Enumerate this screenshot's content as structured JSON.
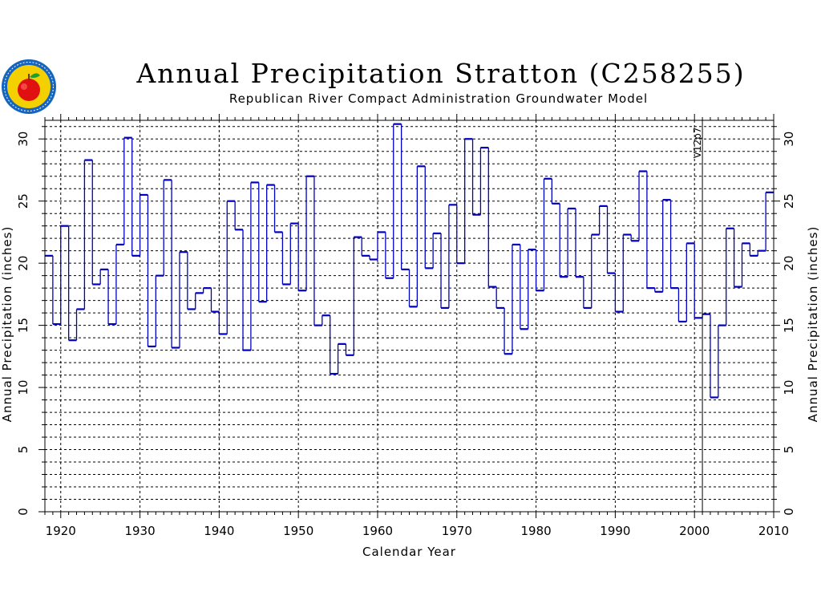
{
  "header": {
    "title": "Annual Precipitation Stratton (C258255)",
    "subtitle": "Republican River Compact Administration Groundwater Model",
    "logo_icon": "compact-seal-apple-logo"
  },
  "colors": {
    "series": "#0000c0",
    "logo_ring": "#1565c0",
    "logo_fill": "#f5d000",
    "apple": "#e01010",
    "leaf": "#1e9e2a"
  },
  "chart_data": {
    "type": "line",
    "style": "step",
    "title": "Annual Precipitation Stratton (C258255)",
    "subtitle": "Republican River Compact Administration Groundwater Model",
    "xlabel": "Calendar Year",
    "ylabel": "Annual Precipitation (inches)",
    "xlim": [
      1918,
      2010
    ],
    "ylim": [
      0,
      31.5
    ],
    "x_ticks": [
      1920,
      1930,
      1940,
      1950,
      1960,
      1970,
      1980,
      1990,
      2000,
      2010
    ],
    "y_ticks": [
      0,
      5,
      10,
      15,
      20,
      25,
      30
    ],
    "grid": true,
    "vline": {
      "x": 2001,
      "label": "V12p7"
    },
    "x": [
      1918,
      1919,
      1920,
      1921,
      1922,
      1923,
      1924,
      1925,
      1926,
      1927,
      1928,
      1929,
      1930,
      1931,
      1932,
      1933,
      1934,
      1935,
      1936,
      1937,
      1938,
      1939,
      1940,
      1941,
      1942,
      1943,
      1944,
      1945,
      1946,
      1947,
      1948,
      1949,
      1950,
      1951,
      1952,
      1953,
      1954,
      1955,
      1956,
      1957,
      1958,
      1959,
      1960,
      1961,
      1962,
      1963,
      1964,
      1965,
      1966,
      1967,
      1968,
      1969,
      1970,
      1971,
      1972,
      1973,
      1974,
      1975,
      1976,
      1977,
      1978,
      1979,
      1980,
      1981,
      1982,
      1983,
      1984,
      1985,
      1986,
      1987,
      1988,
      1989,
      1990,
      1991,
      1992,
      1993,
      1994,
      1995,
      1996,
      1997,
      1998,
      1999,
      2000,
      2001,
      2002,
      2003,
      2004,
      2005,
      2006,
      2007,
      2008,
      2009
    ],
    "values": [
      20.6,
      15.1,
      23.0,
      13.8,
      16.3,
      28.3,
      18.3,
      19.5,
      15.1,
      21.5,
      30.1,
      20.6,
      25.5,
      13.3,
      19.0,
      26.7,
      13.2,
      20.9,
      16.3,
      17.6,
      18.0,
      16.1,
      14.3,
      25.0,
      22.7,
      13.0,
      26.5,
      16.9,
      26.3,
      22.5,
      18.3,
      23.2,
      17.8,
      27.0,
      15.0,
      15.8,
      11.1,
      13.5,
      12.6,
      22.1,
      20.6,
      20.3,
      22.5,
      18.8,
      31.2,
      19.5,
      16.5,
      27.8,
      19.6,
      22.4,
      16.4,
      24.7,
      20.0,
      30.0,
      23.9,
      29.3,
      18.1,
      16.4,
      12.7,
      21.5,
      14.7,
      21.1,
      17.8,
      26.8,
      24.8,
      18.9,
      24.4,
      18.9,
      16.4,
      22.3,
      24.6,
      19.2,
      16.1,
      22.3,
      21.8,
      27.4,
      18.0,
      17.7,
      25.1,
      18.0,
      15.3,
      21.6,
      15.6,
      15.9,
      9.2,
      15.0,
      22.8,
      18.1,
      21.6,
      20.6,
      21.0,
      25.7
    ]
  }
}
